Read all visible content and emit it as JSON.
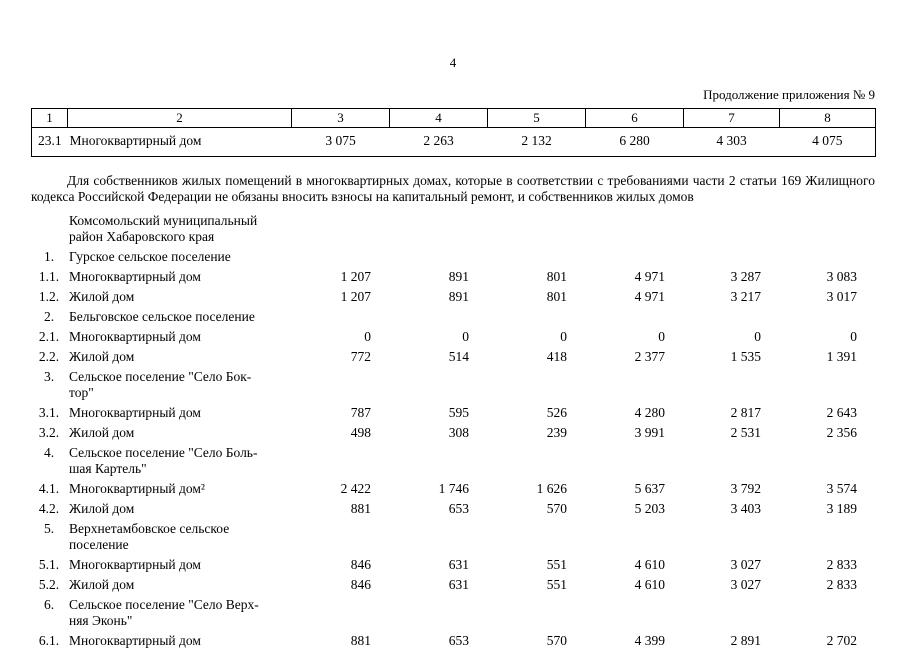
{
  "page": {
    "number": "4",
    "continuation_note": "Продолжение приложения № 9"
  },
  "table": {
    "column_headers": [
      "1",
      "2",
      "3",
      "4",
      "5",
      "6",
      "7",
      "8"
    ],
    "top_row": {
      "num": "23.1",
      "label": "Многоквартирный дом",
      "values": [
        "3 075",
        "2 263",
        "2 132",
        "6 280",
        "4 303",
        "4 075"
      ]
    }
  },
  "paragraph": "Для собственников жилых помещений в многоквартирных домах, которые в соответствии с требованиями части 2 статьи 169 Жилищного кодекса Российской Федерации не обязаны вносить взносы на капитальный ремонт, и собственников жилых домов",
  "rows": [
    {
      "num": "",
      "label": "Комсомольский муниципальный\nрайон Хабаровского края",
      "values": [
        "",
        "",
        "",
        "",
        "",
        ""
      ]
    },
    {
      "num": "1.",
      "label": "Гурское сельское поселение",
      "values": [
        "",
        "",
        "",
        "",
        "",
        ""
      ]
    },
    {
      "num": "1.1.",
      "label": "Многоквартирный дом",
      "values": [
        "1 207",
        "891",
        "801",
        "4 971",
        "3 287",
        "3 083"
      ]
    },
    {
      "num": "1.2.",
      "label": "Жилой дом",
      "values": [
        "1 207",
        "891",
        "801",
        "4 971",
        "3 217",
        "3 017"
      ]
    },
    {
      "num": "2.",
      "label": "Бельговское сельское поселение",
      "values": [
        "",
        "",
        "",
        "",
        "",
        ""
      ]
    },
    {
      "num": "2.1.",
      "label": "Многоквартирный дом",
      "values": [
        "0",
        "0",
        "0",
        "0",
        "0",
        "0"
      ]
    },
    {
      "num": "2.2.",
      "label": "Жилой дом",
      "values": [
        "772",
        "514",
        "418",
        "2 377",
        "1 535",
        "1 391"
      ]
    },
    {
      "num": "3.",
      "label": "Сельское поселение \"Село Бок-\nтор\"",
      "values": [
        "",
        "",
        "",
        "",
        "",
        ""
      ]
    },
    {
      "num": "3.1.",
      "label": "Многоквартирный дом",
      "values": [
        "787",
        "595",
        "526",
        "4 280",
        "2 817",
        "2 643"
      ]
    },
    {
      "num": "3.2.",
      "label": "Жилой дом",
      "values": [
        "498",
        "308",
        "239",
        "3 991",
        "2 531",
        "2 356"
      ]
    },
    {
      "num": "4.",
      "label": "Сельское поселение \"Село Боль-\nшая Картель\"",
      "values": [
        "",
        "",
        "",
        "",
        "",
        ""
      ]
    },
    {
      "num": "4.1.",
      "label": "Многоквартирный дом²",
      "values": [
        "2 422",
        "1 746",
        "1 626",
        "5 637",
        "3 792",
        "3 574"
      ]
    },
    {
      "num": "4.2.",
      "label": "Жилой дом",
      "values": [
        "881",
        "653",
        "570",
        "5 203",
        "3 403",
        "3 189"
      ]
    },
    {
      "num": "5.",
      "label": "Верхнетамбовское сельское\nпоселение",
      "values": [
        "",
        "",
        "",
        "",
        "",
        ""
      ]
    },
    {
      "num": "5.1.",
      "label": "Многоквартирный дом",
      "values": [
        "846",
        "631",
        "551",
        "4 610",
        "3 027",
        "2 833"
      ]
    },
    {
      "num": "5.2.",
      "label": "Жилой дом",
      "values": [
        "846",
        "631",
        "551",
        "4 610",
        "3 027",
        "2 833"
      ]
    },
    {
      "num": "6.",
      "label": "Сельское поселение \"Село Верх-\nняя Эконь\"",
      "values": [
        "",
        "",
        "",
        "",
        "",
        ""
      ]
    },
    {
      "num": "6.1.",
      "label": "Многоквартирный дом",
      "values": [
        "881",
        "653",
        "570",
        "4 399",
        "2 891",
        "2 702"
      ]
    }
  ]
}
